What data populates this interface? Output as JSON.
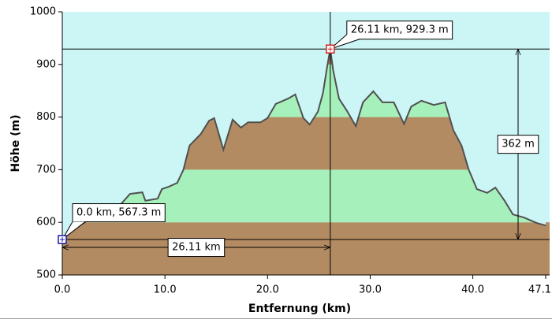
{
  "chart_data": {
    "type": "area",
    "x_label": "Entfernung  (km)",
    "y_label": "Höhe (m)",
    "x": [
      0.0,
      0.85,
      3.1,
      5.5,
      6.6,
      7.8,
      8.1,
      9.3,
      9.7,
      10.4,
      11.2,
      11.8,
      12.4,
      13.5,
      14.3,
      14.8,
      15.7,
      16.6,
      17.4,
      18.1,
      19.3,
      20.0,
      20.8,
      22.0,
      22.7,
      23.5,
      24.1,
      24.9,
      25.4,
      25.8,
      26.11,
      26.4,
      26.96,
      27.7,
      28.6,
      29.3,
      30.3,
      31.2,
      32.3,
      33.3,
      34.0,
      35.0,
      36.2,
      37.3,
      38.1,
      38.9,
      39.6,
      40.4,
      41.4,
      42.2,
      43.1,
      43.9,
      45.0,
      46.2,
      47.1
    ],
    "values": [
      567.3,
      584,
      611,
      630,
      654,
      657,
      641,
      645,
      663,
      668,
      675,
      700,
      746,
      768,
      793,
      798,
      738,
      795,
      780,
      790,
      790,
      798,
      825,
      835,
      843,
      798,
      786,
      810,
      846,
      895,
      929.3,
      888,
      835,
      813,
      783,
      828,
      849,
      828,
      828,
      787,
      820,
      831,
      823,
      828,
      775,
      746,
      700,
      663,
      656,
      666,
      641,
      615,
      609,
      599,
      594
    ],
    "line_color": "#505050",
    "band_colors": [
      "#b38b62",
      "#a6f0bb"
    ],
    "background": "#ccf6f6",
    "xlim": [
      0,
      47.1
    ],
    "ylim": [
      500,
      1000
    ],
    "xticks": [
      {
        "value": 0,
        "label": "0.0"
      },
      {
        "value": 10,
        "label": "10.0"
      },
      {
        "value": 20,
        "label": "20.0"
      },
      {
        "value": 30,
        "label": "30.0"
      },
      {
        "value": 40,
        "label": "40.0"
      },
      47.1
    ],
    "yticks": [
      500,
      600,
      700,
      800,
      900,
      1000
    ],
    "markers": [
      {
        "x": 0.0,
        "y": 567.3,
        "label": "0.0 km, 567.3 m",
        "color": "#1a1aa8"
      },
      {
        "x": 26.11,
        "y": 929.3,
        "label": "26.11 km, 929.3 m",
        "color": "#d42020"
      }
    ],
    "distance_label": "26.11 km",
    "climb_label": "362 m"
  }
}
